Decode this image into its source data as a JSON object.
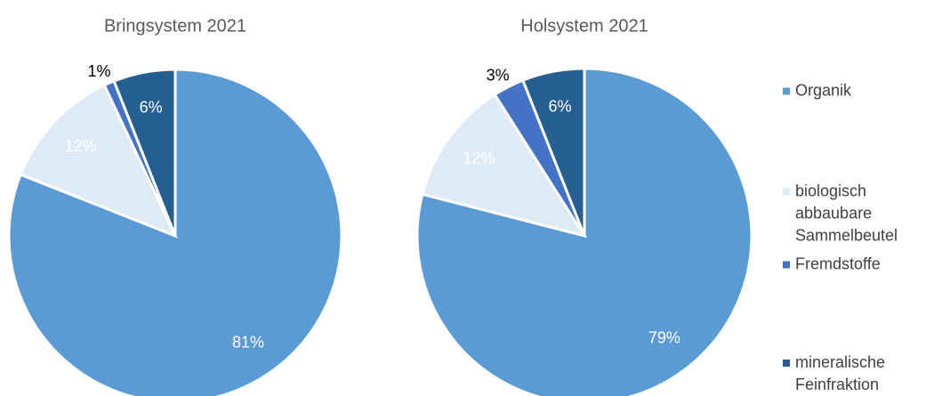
{
  "chart_data": [
    {
      "type": "pie",
      "title": "Bringsystem 2021",
      "categories": [
        "Organik",
        "biologisch abbaubare Sammelbeutel",
        "Fremdstoffe",
        "mineralische Feinfraktion"
      ],
      "values": [
        81,
        12,
        1,
        6
      ],
      "value_labels": [
        "81%",
        "12%",
        "1%",
        "6%"
      ],
      "colors": [
        "#5b9bd5",
        "#deebf7",
        "#4472c4",
        "#255e91"
      ]
    },
    {
      "type": "pie",
      "title": "Holsystem 2021",
      "categories": [
        "Organik",
        "biologisch abbaubare Sammelbeutel",
        "Fremdstoffe",
        "mineralische Feinfraktion"
      ],
      "values": [
        79,
        12,
        3,
        6
      ],
      "value_labels": [
        "79%",
        "12%",
        "3%",
        "6%"
      ],
      "colors": [
        "#5b9bd5",
        "#deebf7",
        "#4472c4",
        "#255e91"
      ]
    }
  ]
}
